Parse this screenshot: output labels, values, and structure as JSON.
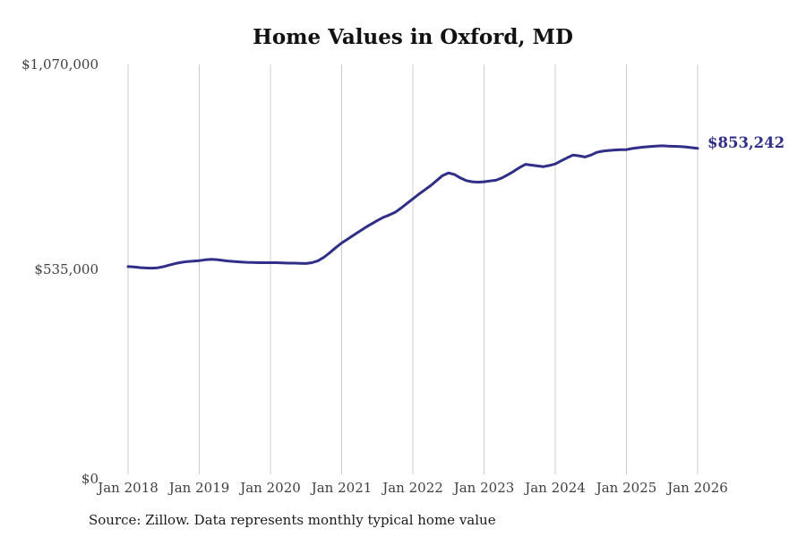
{
  "title": "Home Values in Oxford, MD",
  "y_axis": {
    "ticks": [
      "$1,070,000",
      "$535,000",
      "$0"
    ]
  },
  "x_axis": {
    "ticks": [
      "Jan 2018",
      "Jan 2019",
      "Jan 2020",
      "Jan 2021",
      "Jan 2022",
      "Jan 2023",
      "Jan 2024",
      "Jan 2025",
      "Jan 2026"
    ]
  },
  "end_label": "$853,242",
  "source_note": "Source: Zillow. Data represents monthly typical home value",
  "colors": {
    "line": "#302e87",
    "grid": "#cccccc",
    "title": "#111111",
    "axis_label": "#3f3f3f",
    "end_label": "#302e87",
    "background": "#ffffff"
  },
  "chart_data": {
    "type": "line",
    "title": "Home Values in Oxford, MD",
    "xlabel": "",
    "ylabel": "",
    "x_start": "Jan 2018",
    "x_end": "Jan 2026",
    "frequency": "monthly",
    "ylim": [
      0,
      1070000
    ],
    "y_tick_values": [
      0,
      535000,
      1070000
    ],
    "x_tick_labels": [
      "Jan 2018",
      "Jan 2019",
      "Jan 2020",
      "Jan 2021",
      "Jan 2022",
      "Jan 2023",
      "Jan 2024",
      "Jan 2025",
      "Jan 2026"
    ],
    "grid": "vertical-only",
    "legend": "none",
    "final_value": 853242,
    "final_value_label": "$853,242",
    "series": [
      {
        "name": "Monthly typical home value",
        "values": [
          548000,
          547000,
          545500,
          544500,
          544000,
          545000,
          548000,
          552000,
          556000,
          559000,
          561000,
          562000,
          563500,
          565500,
          567000,
          566000,
          564000,
          562000,
          561000,
          560000,
          559000,
          558500,
          558000,
          558000,
          558000,
          558000,
          557500,
          557000,
          557000,
          556500,
          556000,
          558000,
          563000,
          572000,
          584000,
          597000,
          609000,
          619000,
          629000,
          639000,
          649000,
          658000,
          667000,
          675000,
          681000,
          688000,
          699000,
          711000,
          723000,
          735000,
          746000,
          757000,
          770000,
          783000,
          790000,
          786000,
          777000,
          770000,
          767000,
          766000,
          767000,
          769000,
          771000,
          777000,
          785000,
          794000,
          804000,
          812000,
          810000,
          808000,
          806000,
          809000,
          813000,
          821000,
          829000,
          836000,
          834000,
          831000,
          836000,
          843000,
          846000,
          848000,
          849000,
          850000,
          850000,
          853000,
          855000,
          857000,
          858000,
          859000,
          860000,
          859000,
          858500,
          858000,
          857000,
          855000,
          853242
        ]
      }
    ]
  }
}
